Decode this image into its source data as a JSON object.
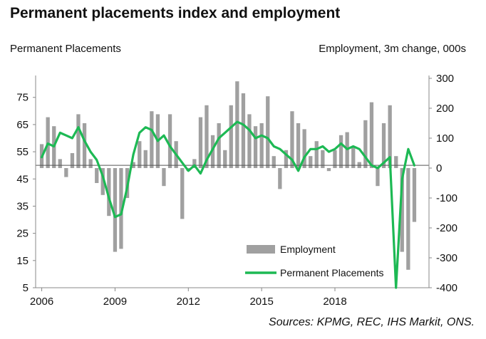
{
  "title": "Permanent placements index and employment",
  "left_axis_caption": "Permanent Placements",
  "right_axis_caption": "Employment,  3m change, 000s",
  "source": "Sources: KPMG, REC, IHS Markit, ONS.",
  "colors": {
    "bars": "#a0a0a0",
    "line": "#1db954",
    "axis": "#888888",
    "ref_line": "#555555"
  },
  "chart_data": {
    "type": "bar+line",
    "x_ticks": [
      "2006",
      "2009",
      "2012",
      "2015",
      "2018"
    ],
    "y_left_ticks": [
      "5",
      "15",
      "25",
      "35",
      "45",
      "55",
      "65",
      "75"
    ],
    "y_right_ticks": [
      "-400",
      "-300",
      "-200",
      "-100",
      "0",
      "100",
      "200",
      "300"
    ],
    "y_left_range": [
      5,
      82
    ],
    "y_right_range": [
      -400,
      300
    ],
    "reference_line_left": 50,
    "legend": [
      "Employment",
      "Permanent Placements"
    ],
    "series": [
      {
        "name": "Employment",
        "axis": "right",
        "type": "bar",
        "x": [
          2006.0,
          2006.25,
          2006.5,
          2006.75,
          2007.0,
          2007.25,
          2007.5,
          2007.75,
          2008.0,
          2008.25,
          2008.5,
          2008.75,
          2009.0,
          2009.25,
          2009.5,
          2009.75,
          2010.0,
          2010.25,
          2010.5,
          2010.75,
          2011.0,
          2011.25,
          2011.5,
          2011.75,
          2012.0,
          2012.25,
          2012.5,
          2012.75,
          2013.0,
          2013.25,
          2013.5,
          2013.75,
          2014.0,
          2014.25,
          2014.5,
          2014.75,
          2015.0,
          2015.25,
          2015.5,
          2015.75,
          2016.0,
          2016.25,
          2016.5,
          2016.75,
          2017.0,
          2017.25,
          2017.5,
          2017.75,
          2018.0,
          2018.25,
          2018.5,
          2018.75,
          2019.0,
          2019.25,
          2019.5,
          2019.75,
          2020.0,
          2020.25,
          2020.5,
          2020.75,
          2021.0,
          2021.25
        ],
        "values": [
          80,
          170,
          140,
          30,
          -30,
          50,
          180,
          150,
          30,
          -50,
          -90,
          -160,
          -280,
          -270,
          -100,
          20,
          90,
          60,
          190,
          180,
          -60,
          180,
          90,
          -170,
          -10,
          30,
          170,
          210,
          110,
          150,
          60,
          210,
          290,
          250,
          180,
          140,
          150,
          240,
          40,
          -70,
          60,
          190,
          150,
          130,
          40,
          90,
          60,
          -10,
          60,
          110,
          120,
          70,
          20,
          160,
          220,
          -60,
          150,
          210,
          40,
          -280,
          -340,
          -180
        ]
      },
      {
        "name": "Permanent Placements",
        "axis": "left",
        "type": "line",
        "x": [
          2006.0,
          2006.25,
          2006.5,
          2006.75,
          2007.0,
          2007.25,
          2007.5,
          2007.75,
          2008.0,
          2008.25,
          2008.5,
          2008.75,
          2009.0,
          2009.25,
          2009.5,
          2009.75,
          2010.0,
          2010.25,
          2010.5,
          2010.75,
          2011.0,
          2011.25,
          2011.5,
          2011.75,
          2012.0,
          2012.25,
          2012.5,
          2012.75,
          2013.0,
          2013.25,
          2013.5,
          2013.75,
          2014.0,
          2014.25,
          2014.5,
          2014.75,
          2015.0,
          2015.25,
          2015.5,
          2015.75,
          2016.0,
          2016.25,
          2016.5,
          2016.75,
          2017.0,
          2017.25,
          2017.5,
          2017.75,
          2018.0,
          2018.25,
          2018.5,
          2018.75,
          2019.0,
          2019.25,
          2019.5,
          2019.75,
          2020.0,
          2020.25,
          2020.5,
          2020.75,
          2021.0,
          2021.25
        ],
        "values": [
          53,
          58,
          57,
          62,
          61,
          60,
          64,
          59,
          55,
          52,
          46,
          38,
          31,
          32,
          42,
          54,
          62,
          64,
          63,
          59,
          61,
          57,
          54,
          51,
          48,
          50,
          47,
          52,
          56,
          60,
          62,
          64,
          66,
          65,
          63,
          60,
          61,
          60,
          57,
          56,
          54,
          52,
          48,
          53,
          56,
          56,
          57,
          55,
          56,
          58,
          56,
          57,
          56,
          53,
          50,
          49,
          51,
          53,
          5,
          45,
          56,
          50
        ]
      }
    ]
  }
}
